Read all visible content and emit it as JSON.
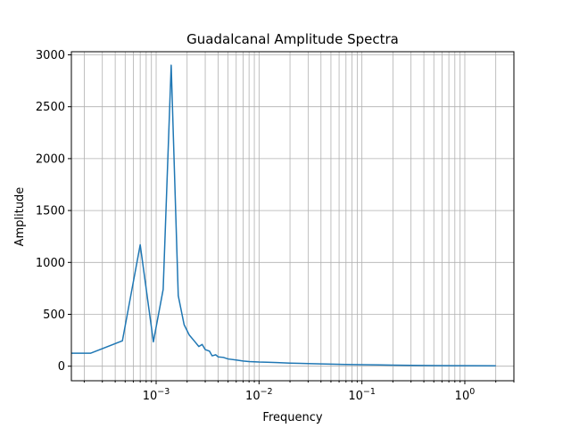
{
  "chart_data": {
    "type": "line",
    "title": "Guadalcanal Amplitude Spectra",
    "xlabel": "Frequency",
    "ylabel": "Amplitude",
    "x_scale": "log",
    "y_scale": "linear",
    "grid": "both-major-minor",
    "xlim": [
      0.00015,
      3.0
    ],
    "ylim": [
      -140,
      3030
    ],
    "x_ticks": [
      {
        "value": 0.001,
        "base": "10",
        "exp": "−3"
      },
      {
        "value": 0.01,
        "base": "10",
        "exp": "−2"
      },
      {
        "value": 0.1,
        "base": "10",
        "exp": "−1"
      },
      {
        "value": 1,
        "base": "10",
        "exp": "0"
      }
    ],
    "y_ticks": [
      0,
      500,
      1000,
      1500,
      2000,
      2500,
      3000
    ],
    "line_color": "#1f77b4",
    "series": [
      {
        "x": [
          0.00015,
          0.00023,
          0.00047,
          0.00052,
          0.0007,
          0.00094,
          0.00117,
          0.0014,
          0.00164,
          0.00187,
          0.0021,
          0.00234,
          0.0026,
          0.0028,
          0.003,
          0.0033,
          0.0035,
          0.0038,
          0.004,
          0.0045,
          0.005,
          0.006,
          0.007,
          0.008,
          0.01,
          0.012,
          0.015,
          0.02,
          0.025,
          0.03,
          0.04,
          0.05,
          0.07,
          0.1,
          0.15,
          0.2,
          0.3,
          0.5,
          1.0,
          2.0
        ],
        "y": [
          125,
          125,
          245,
          480,
          1170,
          235,
          740,
          2900,
          680,
          400,
          300,
          245,
          190,
          210,
          160,
          145,
          100,
          110,
          90,
          85,
          70,
          60,
          50,
          45,
          40,
          38,
          35,
          30,
          28,
          25,
          22,
          20,
          17,
          15,
          12,
          10,
          8,
          6,
          5,
          4
        ]
      }
    ]
  }
}
